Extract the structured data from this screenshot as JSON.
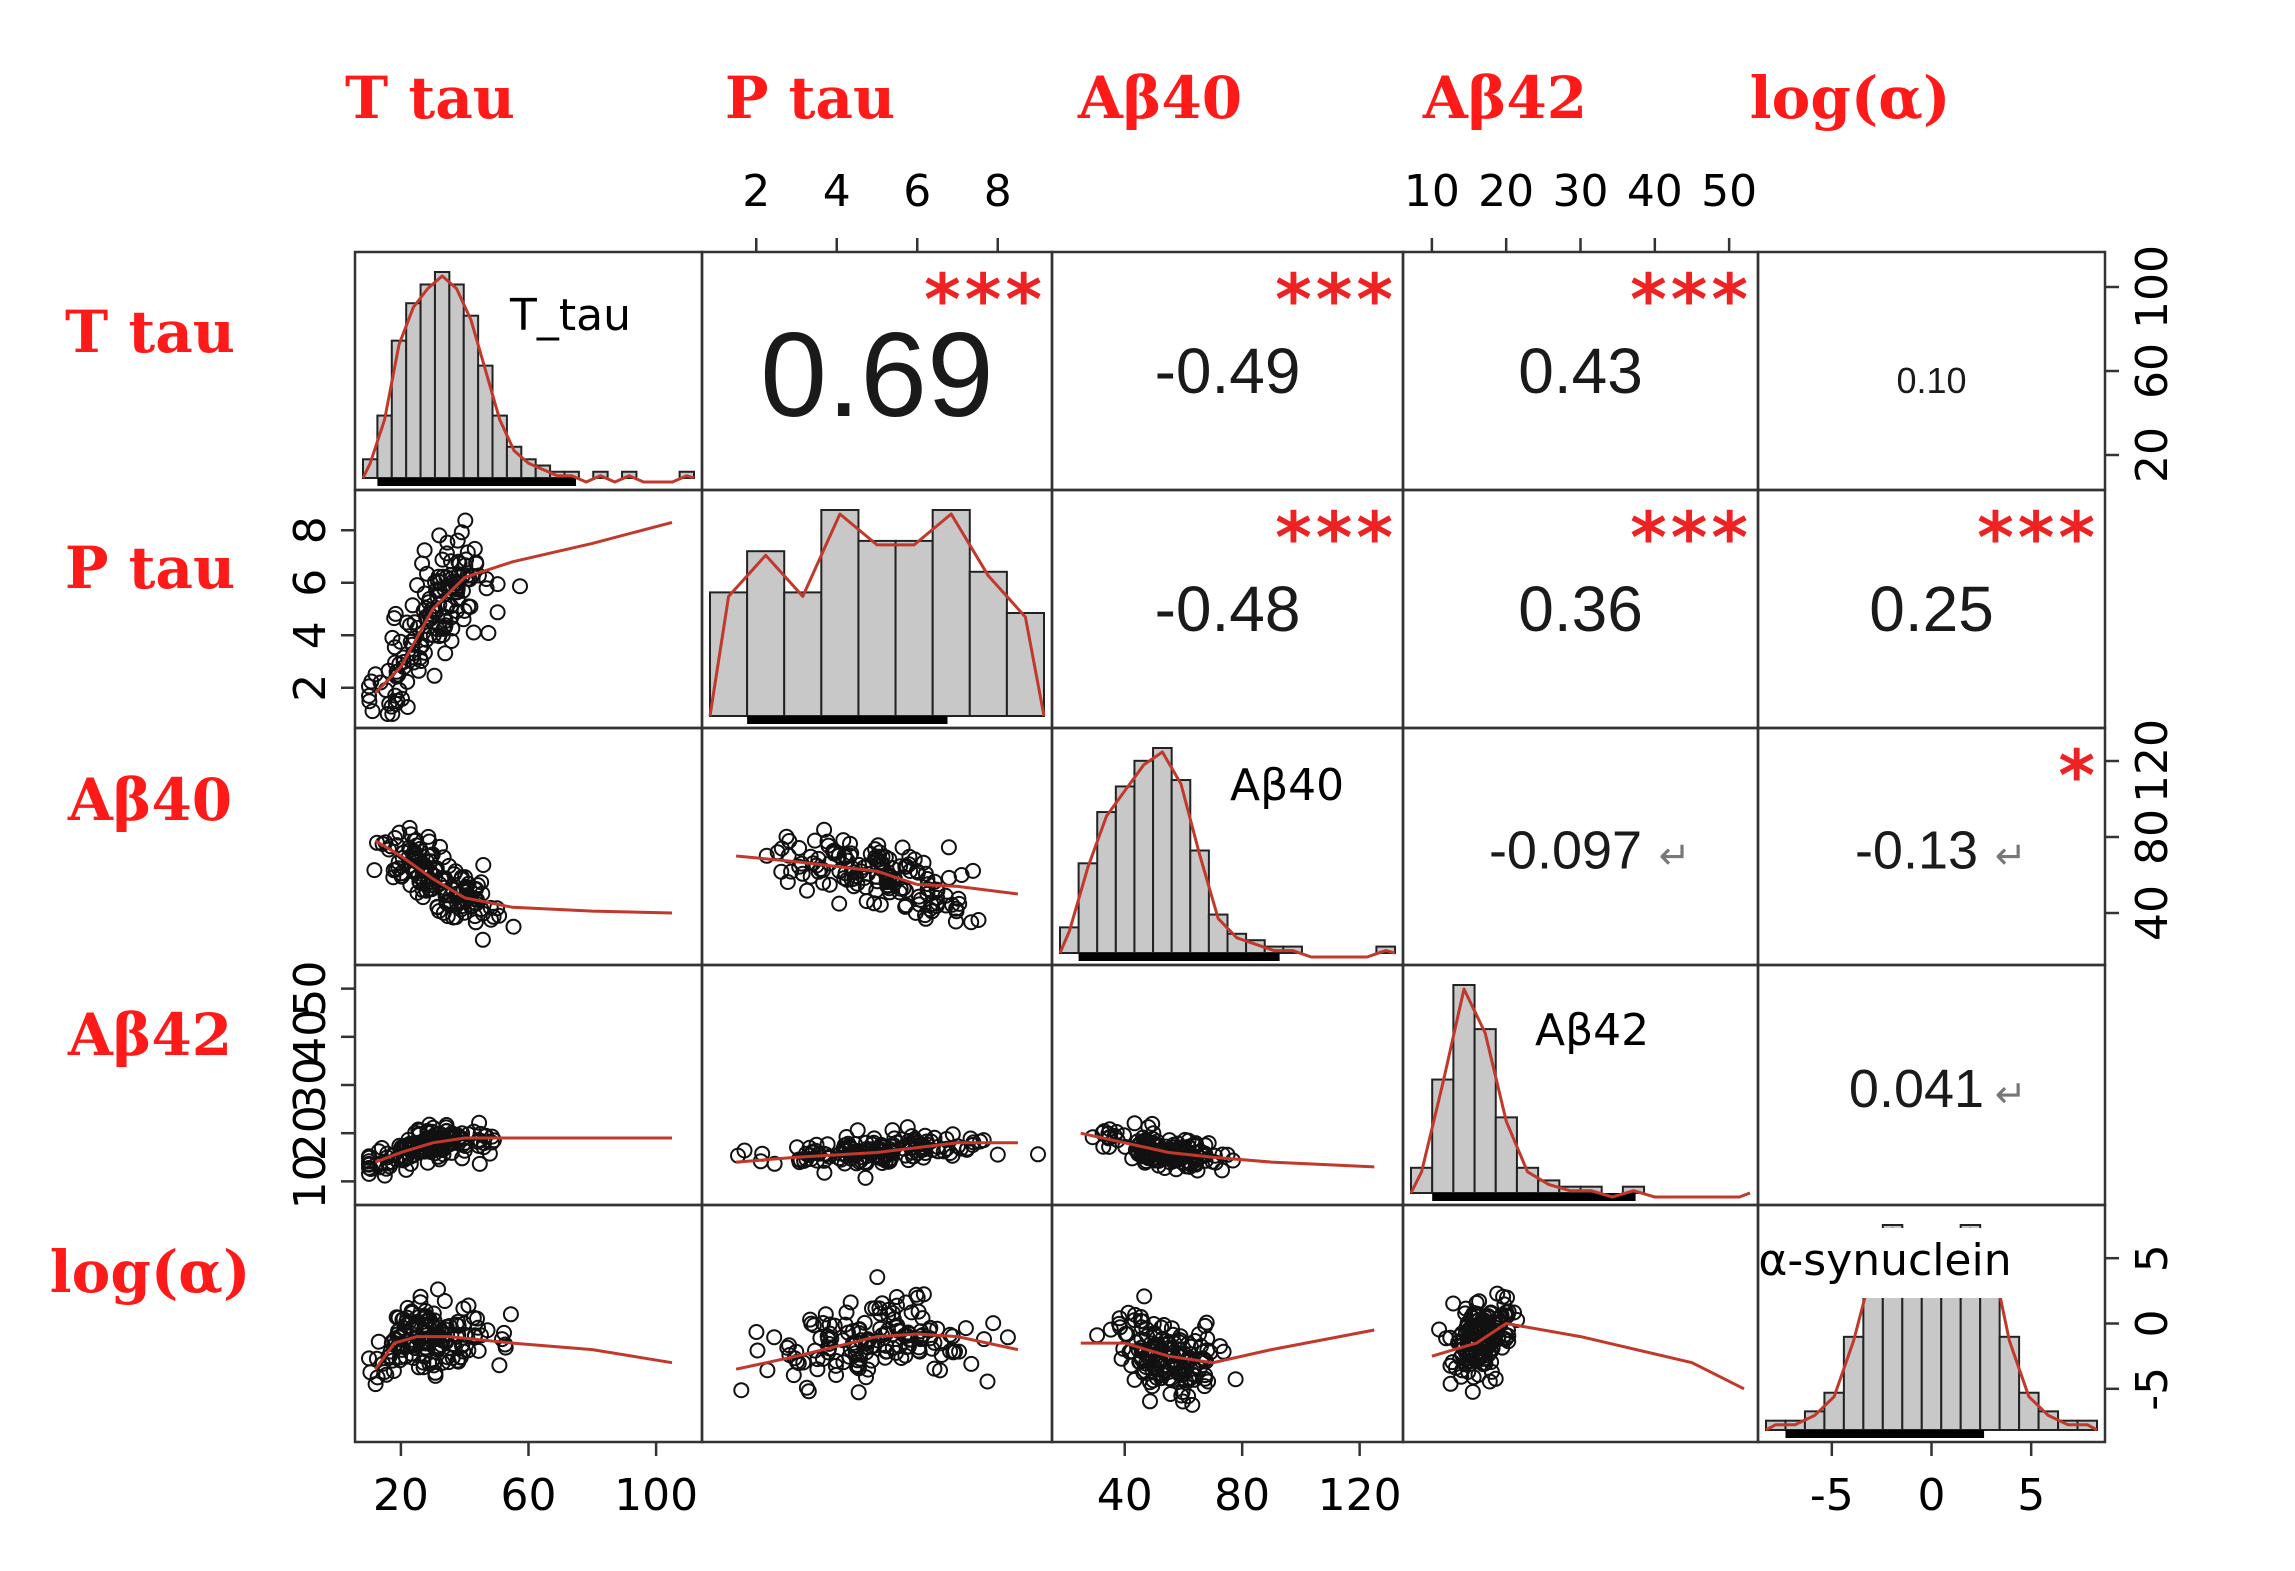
{
  "chart_data": {
    "type": "scatter-matrix",
    "variables": [
      {
        "key": "ttau",
        "label": "T tau",
        "diag_label": "T_tau",
        "ticks": [
          "20",
          "60",
          "100"
        ],
        "range": [
          10,
          110
        ]
      },
      {
        "key": "ptau",
        "label": "P tau",
        "diag_label": "",
        "ticks": [
          "2",
          "4",
          "6",
          "8"
        ],
        "range": [
          1,
          9
        ]
      },
      {
        "key": "ab40",
        "label": "Aβ40",
        "diag_label": "Aβ40",
        "ticks": [
          "40",
          "80",
          "120"
        ],
        "range": [
          20,
          130
        ]
      },
      {
        "key": "ab42",
        "label": "Aβ42",
        "diag_label": "Aβ42",
        "ticks": [
          "10",
          "20",
          "30",
          "40",
          "50"
        ],
        "range": [
          8,
          52
        ]
      },
      {
        "key": "logalpha",
        "label": "log(α)",
        "diag_label": "α-synuclein",
        "ticks": [
          "-5",
          "0",
          "5"
        ],
        "range": [
          -8,
          8
        ]
      }
    ],
    "correlations": [
      {
        "row": 0,
        "col": 1,
        "value": "0.69",
        "stars": "***",
        "size": "large"
      },
      {
        "row": 0,
        "col": 2,
        "value": "-0.49",
        "stars": "***",
        "size": "medium"
      },
      {
        "row": 0,
        "col": 3,
        "value": "0.43",
        "stars": "***",
        "size": "medium"
      },
      {
        "row": 0,
        "col": 4,
        "value": "0.10",
        "stars": "",
        "size": "tiny"
      },
      {
        "row": 1,
        "col": 2,
        "value": "-0.48",
        "stars": "***",
        "size": "medium"
      },
      {
        "row": 1,
        "col": 3,
        "value": "0.36",
        "stars": "***",
        "size": "medium"
      },
      {
        "row": 1,
        "col": 4,
        "value": "0.25",
        "stars": "***",
        "size": "medium"
      },
      {
        "row": 2,
        "col": 3,
        "value": "-0.097",
        "stars": "",
        "size": "small",
        "return_mark": "↵"
      },
      {
        "row": 2,
        "col": 4,
        "value": "-0.13",
        "stars": "*",
        "size": "small",
        "return_mark": "↵"
      },
      {
        "row": 3,
        "col": 4,
        "value": "0.041",
        "stars": "",
        "size": "small",
        "return_mark": "↵"
      }
    ],
    "histograms": [
      {
        "var": 0,
        "counts": [
          3,
          10,
          22,
          28,
          31,
          33,
          31,
          26,
          18,
          10,
          5,
          3,
          2,
          1,
          1,
          0,
          1,
          0,
          1,
          0,
          0,
          0,
          1
        ]
      },
      {
        "var": 1,
        "counts": [
          12,
          16,
          12,
          20,
          17,
          17,
          20,
          14,
          10
        ]
      },
      {
        "var": 2,
        "counts": [
          4,
          14,
          22,
          26,
          30,
          32,
          27,
          16,
          6,
          3,
          2,
          1,
          1,
          0,
          0,
          0,
          0,
          1
        ]
      },
      {
        "var": 3,
        "counts": [
          4,
          18,
          33,
          26,
          12,
          4,
          2,
          1,
          1,
          0,
          1,
          0,
          0,
          0,
          0,
          0
        ]
      },
      {
        "var": 4,
        "counts": [
          1,
          1,
          2,
          4,
          10,
          18,
          22,
          20,
          16,
          18,
          22,
          20,
          10,
          4,
          2,
          1,
          1
        ]
      }
    ],
    "loess": [
      {
        "row": 1,
        "col": 0,
        "x": [
          12,
          20,
          30,
          40,
          55,
          80,
          105
        ],
        "y": [
          1.8,
          2.8,
          5.0,
          6.2,
          6.8,
          7.5,
          8.3
        ]
      },
      {
        "row": 2,
        "col": 0,
        "x": [
          12,
          20,
          30,
          40,
          55,
          80,
          105
        ],
        "y": [
          78,
          70,
          58,
          48,
          43,
          41,
          40
        ]
      },
      {
        "row": 2,
        "col": 1,
        "x": [
          1.5,
          3,
          5,
          6,
          7,
          8.5
        ],
        "y": [
          70,
          67,
          62,
          55,
          54,
          50
        ]
      },
      {
        "row": 3,
        "col": 0,
        "x": [
          12,
          20,
          30,
          40,
          55,
          80,
          105
        ],
        "y": [
          14,
          16,
          18,
          19,
          19,
          19,
          19
        ]
      },
      {
        "row": 3,
        "col": 1,
        "x": [
          1.5,
          3,
          5,
          6,
          7,
          8.5
        ],
        "y": [
          14,
          15,
          16,
          17,
          18,
          18
        ]
      },
      {
        "row": 3,
        "col": 2,
        "x": [
          25,
          40,
          55,
          70,
          90,
          125
        ],
        "y": [
          20,
          18,
          16,
          15,
          14,
          13
        ]
      },
      {
        "row": 4,
        "col": 0,
        "x": [
          12,
          18,
          25,
          35,
          55,
          80,
          105
        ],
        "y": [
          -3.5,
          -1.5,
          -1.0,
          -1.0,
          -1.5,
          -2.0,
          -3.0
        ]
      },
      {
        "row": 4,
        "col": 1,
        "x": [
          1.5,
          3,
          5,
          6,
          7,
          8.5
        ],
        "y": [
          -3.5,
          -2.5,
          -1.0,
          -0.8,
          -1.0,
          -2.0
        ]
      },
      {
        "row": 4,
        "col": 2,
        "x": [
          25,
          40,
          55,
          70,
          90,
          125
        ],
        "y": [
          -1.5,
          -1.5,
          -2.5,
          -3.0,
          -2.0,
          -0.5
        ]
      },
      {
        "row": 4,
        "col": 3,
        "x": [
          10,
          13,
          16,
          20,
          30,
          45,
          52
        ],
        "y": [
          -2.5,
          -2.0,
          -1.5,
          0,
          -1.0,
          -3.0,
          -5.0
        ]
      }
    ]
  }
}
